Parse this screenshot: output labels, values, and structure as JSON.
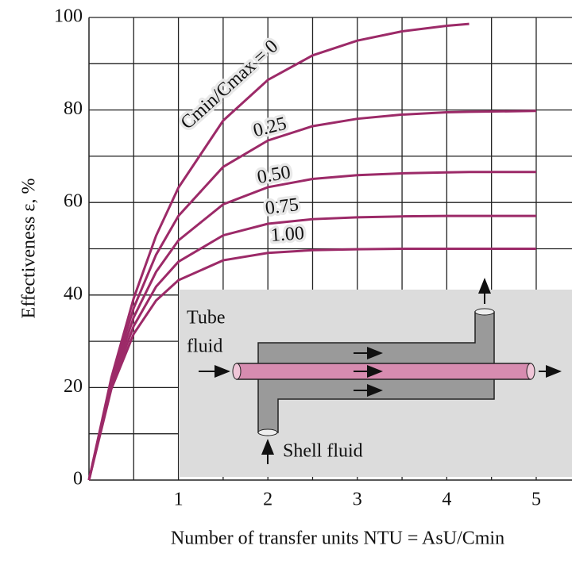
{
  "chart_data": {
    "type": "line",
    "x_label": "Number of transfer units NTU = AsU/Cmin",
    "y_label": "Effectiveness ε, %",
    "x": [
      0,
      0.25,
      0.5,
      0.75,
      1,
      1.5,
      2,
      2.5,
      3,
      3.5,
      4,
      4.25,
      5
    ],
    "series": [
      {
        "name": "Cmin/Cmax = 0",
        "color": "#9c2a68",
        "values": [
          0,
          22.1,
          39.3,
          52.8,
          63.2,
          77.7,
          86.5,
          91.8,
          95.0,
          97.0,
          98.2,
          98.6,
          null
        ]
      },
      {
        "name": "0.25",
        "color": "#9c2a68",
        "values": [
          0,
          21.5,
          37.2,
          48.7,
          57.1,
          67.7,
          73.4,
          76.5,
          78.1,
          79.0,
          79.5,
          79.6,
          79.8
        ]
      },
      {
        "name": "0.50",
        "color": "#9c2a68",
        "values": [
          0,
          20.8,
          35.2,
          45.0,
          51.8,
          59.6,
          63.3,
          65.1,
          65.9,
          66.3,
          66.5,
          66.6,
          66.6
        ]
      },
      {
        "name": "0.75",
        "color": "#9c2a68",
        "values": [
          0,
          20.3,
          33.3,
          41.8,
          47.2,
          52.9,
          55.4,
          56.4,
          56.8,
          57.0,
          57.1,
          57.1,
          57.1
        ]
      },
      {
        "name": "1.00",
        "color": "#9c2a68",
        "values": [
          0,
          19.7,
          31.6,
          38.8,
          43.2,
          47.5,
          49.1,
          49.7,
          49.9,
          50.0,
          50.0,
          50.0,
          50.0
        ]
      }
    ],
    "xlim": [
      0,
      5.4
    ],
    "ylim": [
      0,
      100
    ],
    "xticks": [
      1,
      2,
      3,
      4,
      5
    ],
    "yticks": [
      0,
      20,
      40,
      60,
      80,
      100
    ],
    "xgrid": [
      0.5,
      1,
      1.5,
      2,
      2.5,
      3,
      3.5,
      4,
      4.5,
      5
    ],
    "ygrid": [
      10,
      20,
      30,
      40,
      50,
      60,
      70,
      80,
      90,
      100
    ],
    "grid": true,
    "annotations": [
      "Tube",
      "fluid",
      "Shell fluid"
    ]
  }
}
